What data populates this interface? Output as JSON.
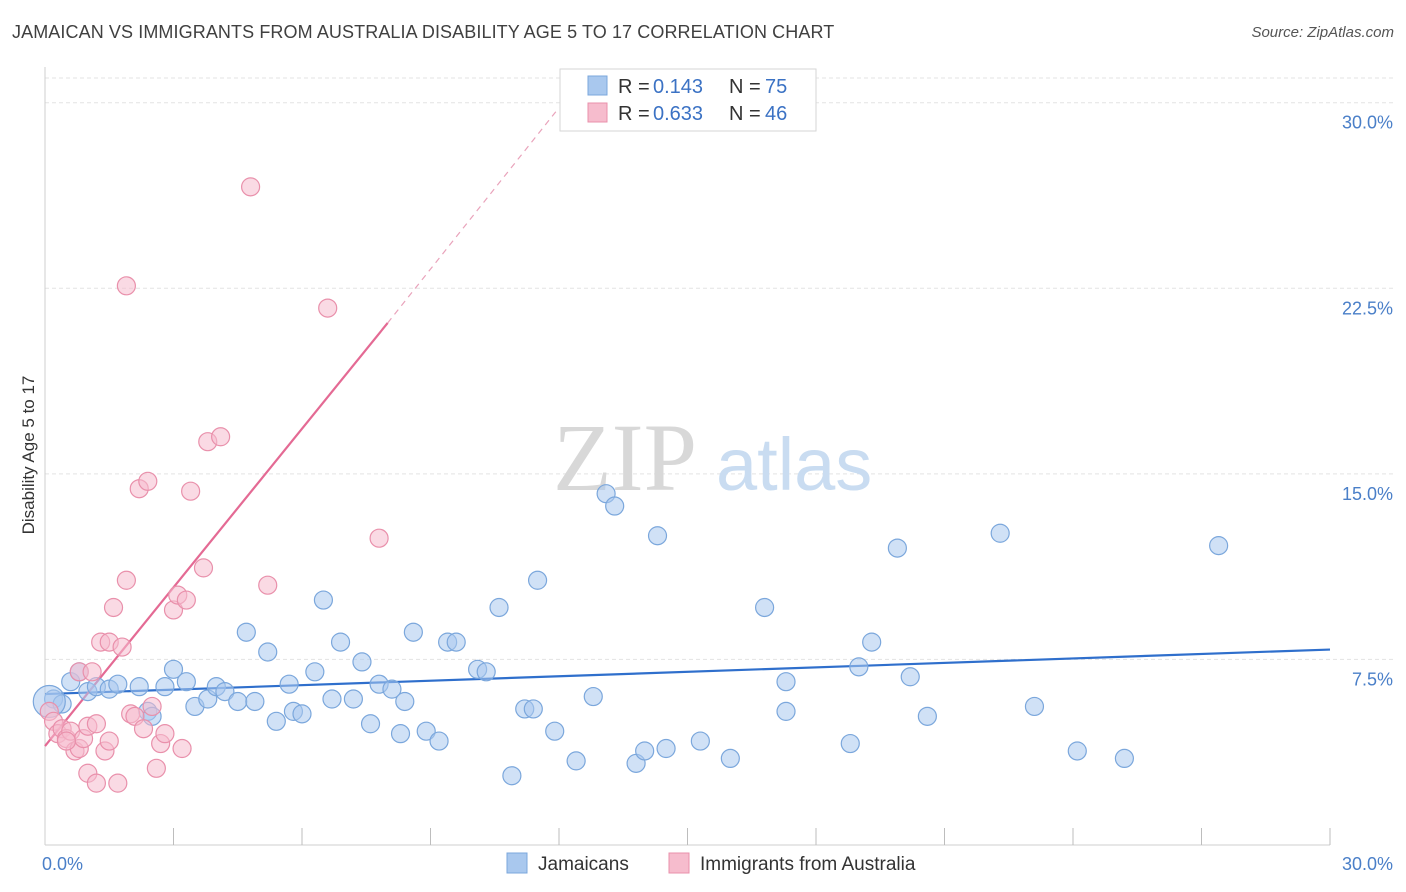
{
  "title": "JAMAICAN VS IMMIGRANTS FROM AUSTRALIA DISABILITY AGE 5 TO 17 CORRELATION CHART",
  "source": "Source: ZipAtlas.com",
  "watermark": {
    "zip": "ZIP",
    "atlas": "atlas"
  },
  "colors": {
    "blue_fill": "#a9c8ee",
    "blue_stroke": "#7ba7dc",
    "blue_line": "#2f6fcc",
    "pink_fill": "#f6bccd",
    "pink_stroke": "#e990ab",
    "pink_line": "#e46a94",
    "grid": "#e3e3e3",
    "tick_text": "#4a7fc8"
  },
  "legend_top": {
    "rows": [
      {
        "r_label": "R =",
        "r_value": "0.143",
        "n_label": "N =",
        "n_value": "75",
        "color": "blue"
      },
      {
        "r_label": "R =",
        "r_value": "0.633",
        "n_label": "N =",
        "n_value": "46",
        "color": "pink"
      }
    ]
  },
  "legend_bottom": [
    {
      "label": "Jamaicans",
      "color": "blue"
    },
    {
      "label": "Immigrants from Australia",
      "color": "pink"
    }
  ],
  "chart_data": {
    "type": "scatter",
    "title": "JAMAICAN VS IMMIGRANTS FROM AUSTRALIA DISABILITY AGE 5 TO 17 CORRELATION CHART",
    "xlabel": "",
    "ylabel": "Disability Age 5 to 17",
    "xlim": [
      0,
      30
    ],
    "ylim": [
      0,
      31
    ],
    "x_tick_labels": [
      {
        "value": 0,
        "label": "0.0%"
      },
      {
        "value": 30,
        "label": "30.0%"
      }
    ],
    "y_tick_labels": [
      {
        "value": 7.5,
        "label": "7.5%"
      },
      {
        "value": 15,
        "label": "15.0%"
      },
      {
        "value": 22.5,
        "label": "22.5%"
      },
      {
        "value": 30,
        "label": "30.0%"
      }
    ],
    "x_minor_ticks": [
      3,
      6,
      9,
      12,
      15,
      18,
      21,
      24,
      27,
      30
    ],
    "grid": true,
    "legend_position": "top-center",
    "series": [
      {
        "name": "Jamaicans",
        "color": "#a9c8ee",
        "trend": {
          "x": [
            0,
            30
          ],
          "y": [
            6.1,
            7.9
          ]
        },
        "points": [
          [
            0.2,
            5.9
          ],
          [
            0.4,
            5.7
          ],
          [
            0.6,
            6.6
          ],
          [
            0.8,
            7.0
          ],
          [
            1.0,
            6.2
          ],
          [
            1.2,
            6.4
          ],
          [
            1.5,
            6.3
          ],
          [
            1.7,
            6.5
          ],
          [
            2.2,
            6.4
          ],
          [
            2.4,
            5.4
          ],
          [
            2.5,
            5.2
          ],
          [
            2.8,
            6.4
          ],
          [
            3.0,
            7.1
          ],
          [
            3.3,
            6.6
          ],
          [
            3.5,
            5.6
          ],
          [
            3.8,
            5.9
          ],
          [
            4.0,
            6.4
          ],
          [
            4.2,
            6.2
          ],
          [
            4.5,
            5.8
          ],
          [
            4.7,
            8.6
          ],
          [
            4.9,
            5.8
          ],
          [
            5.2,
            7.8
          ],
          [
            5.4,
            5.0
          ],
          [
            5.7,
            6.5
          ],
          [
            5.8,
            5.4
          ],
          [
            6.0,
            5.3
          ],
          [
            6.3,
            7.0
          ],
          [
            6.5,
            9.9
          ],
          [
            6.7,
            5.9
          ],
          [
            6.9,
            8.2
          ],
          [
            7.2,
            5.9
          ],
          [
            7.4,
            7.4
          ],
          [
            7.6,
            4.9
          ],
          [
            7.8,
            6.5
          ],
          [
            8.1,
            6.3
          ],
          [
            8.3,
            4.5
          ],
          [
            8.4,
            5.8
          ],
          [
            8.6,
            8.6
          ],
          [
            8.9,
            4.6
          ],
          [
            9.2,
            4.2
          ],
          [
            9.4,
            8.2
          ],
          [
            9.6,
            8.2
          ],
          [
            10.1,
            7.1
          ],
          [
            10.3,
            7.0
          ],
          [
            10.6,
            9.6
          ],
          [
            10.9,
            2.8
          ],
          [
            11.2,
            5.5
          ],
          [
            11.4,
            5.5
          ],
          [
            11.5,
            10.7
          ],
          [
            11.9,
            4.6
          ],
          [
            12.4,
            3.4
          ],
          [
            12.8,
            6.0
          ],
          [
            13.1,
            14.2
          ],
          [
            13.3,
            13.7
          ],
          [
            13.8,
            3.3
          ],
          [
            14.0,
            3.8
          ],
          [
            14.3,
            12.5
          ],
          [
            14.5,
            3.9
          ],
          [
            15.3,
            4.2
          ],
          [
            16.0,
            3.5
          ],
          [
            16.8,
            9.6
          ],
          [
            17.3,
            6.6
          ],
          [
            17.3,
            5.4
          ],
          [
            18.8,
            4.1
          ],
          [
            19.0,
            7.2
          ],
          [
            19.3,
            8.2
          ],
          [
            19.9,
            12.0
          ],
          [
            20.2,
            6.8
          ],
          [
            20.6,
            5.2
          ],
          [
            22.3,
            12.6
          ],
          [
            23.1,
            5.6
          ],
          [
            24.1,
            3.8
          ],
          [
            25.2,
            3.5
          ],
          [
            27.4,
            12.1
          ],
          [
            0.1,
            5.8
          ]
        ]
      },
      {
        "name": "Immigrants from Australia",
        "color": "#f6bccd",
        "trend": {
          "x": [
            0,
            8
          ],
          "y": [
            4.0,
            21.1
          ]
        },
        "trend_dashed": {
          "x": [
            8,
            12
          ],
          "y": [
            21.1,
            29.8
          ]
        },
        "points": [
          [
            0.1,
            5.4
          ],
          [
            0.2,
            5.0
          ],
          [
            0.3,
            4.5
          ],
          [
            0.4,
            4.7
          ],
          [
            0.5,
            4.3
          ],
          [
            0.6,
            4.6
          ],
          [
            0.7,
            3.8
          ],
          [
            0.8,
            3.9
          ],
          [
            0.8,
            7.0
          ],
          [
            0.9,
            4.3
          ],
          [
            1.0,
            4.8
          ],
          [
            1.0,
            2.9
          ],
          [
            1.1,
            7.0
          ],
          [
            1.2,
            4.9
          ],
          [
            1.2,
            2.5
          ],
          [
            1.3,
            8.2
          ],
          [
            1.4,
            3.8
          ],
          [
            1.5,
            4.2
          ],
          [
            1.5,
            8.2
          ],
          [
            1.6,
            9.6
          ],
          [
            1.7,
            2.5
          ],
          [
            1.8,
            8.0
          ],
          [
            1.9,
            10.7
          ],
          [
            1.9,
            22.6
          ],
          [
            2.0,
            5.3
          ],
          [
            2.1,
            5.2
          ],
          [
            2.2,
            14.4
          ],
          [
            2.3,
            4.7
          ],
          [
            2.4,
            14.7
          ],
          [
            2.5,
            5.6
          ],
          [
            2.6,
            3.1
          ],
          [
            2.7,
            4.1
          ],
          [
            2.8,
            4.5
          ],
          [
            3.0,
            9.5
          ],
          [
            3.1,
            10.1
          ],
          [
            3.2,
            3.9
          ],
          [
            3.3,
            9.9
          ],
          [
            3.4,
            14.3
          ],
          [
            3.7,
            11.2
          ],
          [
            3.8,
            16.3
          ],
          [
            4.1,
            16.5
          ],
          [
            4.8,
            26.6
          ],
          [
            5.2,
            10.5
          ],
          [
            6.6,
            21.7
          ],
          [
            7.8,
            12.4
          ],
          [
            0.5,
            4.2
          ]
        ]
      }
    ]
  }
}
